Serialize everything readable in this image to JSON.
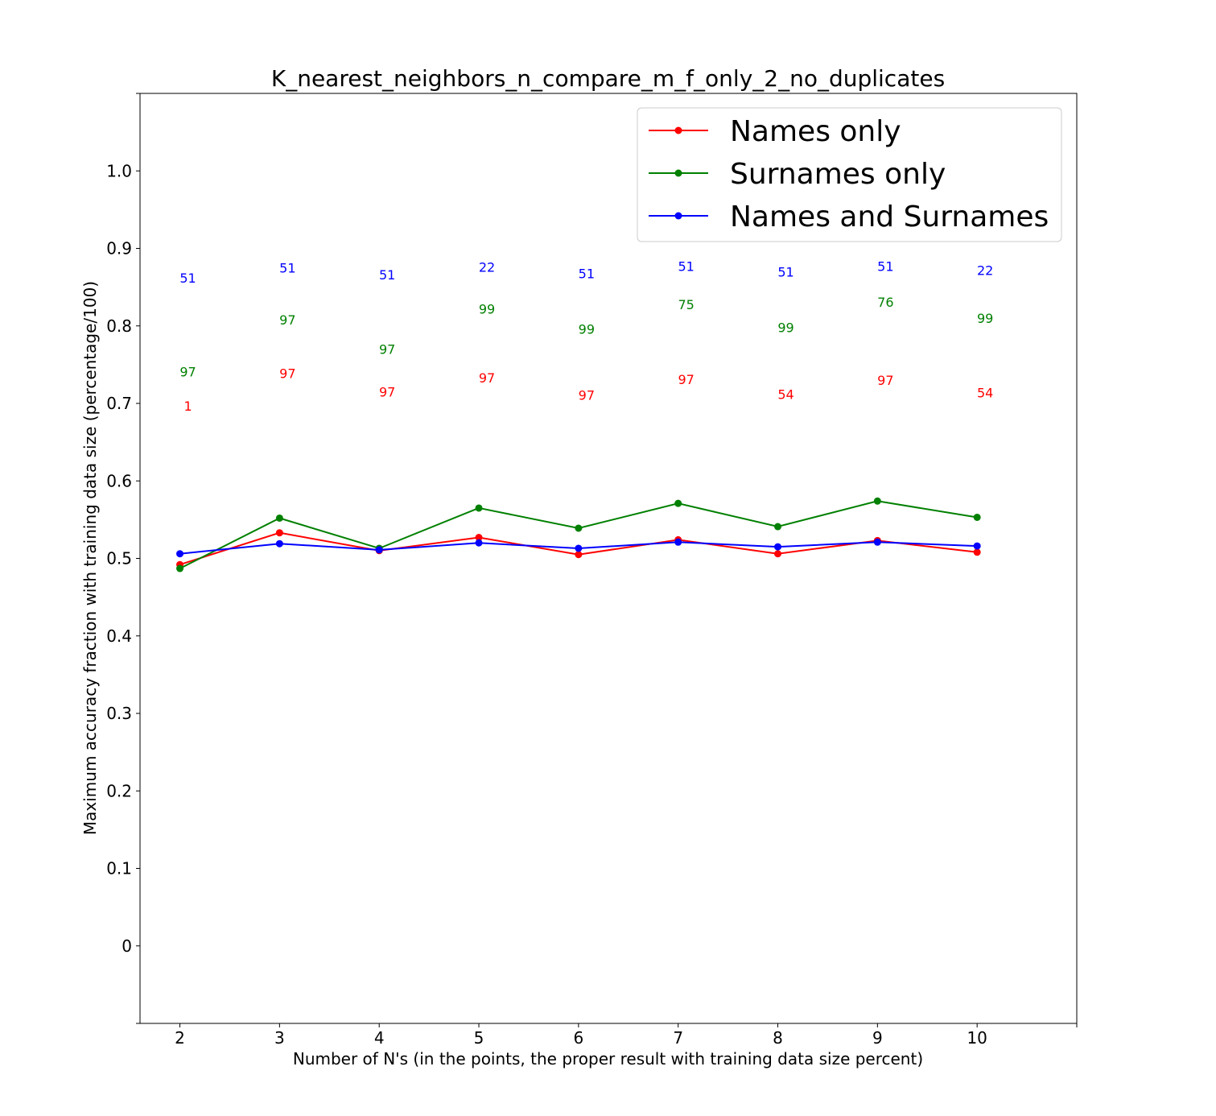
{
  "chart_data": {
    "type": "line",
    "title": "K_nearest_neighbors_n_compare_m_f_only_2_no_duplicates",
    "xlabel": "Number of N's (in the points, the proper result with training data size percent)",
    "ylabel": "Maximum accuracy fraction with training data size (percentage/100)",
    "x": [
      2,
      3,
      4,
      5,
      6,
      7,
      8,
      9,
      10
    ],
    "xticks": [
      "2",
      "3",
      "4",
      "5",
      "6",
      "7",
      "8",
      "9",
      "10"
    ],
    "yticks": [
      "0",
      "0.1",
      "0.2",
      "0.3",
      "0.4",
      "0.5",
      "0.6",
      "0.7",
      "0.8",
      "0.9",
      "1.0"
    ],
    "xlim": [
      1.6,
      11.0
    ],
    "ylim": [
      -0.1,
      1.1
    ],
    "grid": false,
    "legend_position": "top-right",
    "series": [
      {
        "name": "Names only",
        "color": "#ff0000",
        "values": [
          0.492,
          0.533,
          0.51,
          0.527,
          0.505,
          0.524,
          0.506,
          0.523,
          0.508
        ],
        "labels": [
          "1",
          "97",
          "97",
          "97",
          "97",
          "97",
          "54",
          "97",
          "54"
        ],
        "label_y": [
          0.697,
          0.739,
          0.715,
          0.733,
          0.711,
          0.731,
          0.712,
          0.73,
          0.714
        ]
      },
      {
        "name": "Surnames only",
        "color": "#008000",
        "values": [
          0.487,
          0.552,
          0.513,
          0.565,
          0.539,
          0.571,
          0.541,
          0.574,
          0.553
        ],
        "labels": [
          "97",
          "97",
          "97",
          "99",
          "99",
          "75",
          "99",
          "76",
          "99"
        ],
        "label_y": [
          0.741,
          0.808,
          0.77,
          0.822,
          0.796,
          0.828,
          0.798,
          0.831,
          0.81
        ]
      },
      {
        "name": "Names and Surnames",
        "color": "#0000ff",
        "values": [
          0.506,
          0.519,
          0.511,
          0.52,
          0.513,
          0.521,
          0.515,
          0.521,
          0.516
        ],
        "labels": [
          "51",
          "51",
          "51",
          "22",
          "51",
          "51",
          "51",
          "51",
          "22"
        ],
        "label_y": [
          0.862,
          0.875,
          0.866,
          0.876,
          0.868,
          0.877,
          0.87,
          0.877,
          0.872
        ]
      }
    ]
  }
}
